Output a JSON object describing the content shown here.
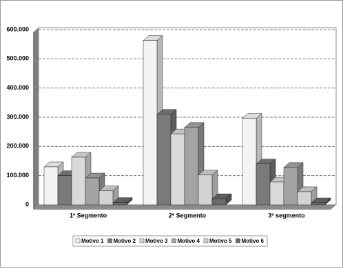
{
  "chart_data": {
    "type": "bar",
    "categories": [
      "1º Segmento",
      "2º Segmento",
      "3º segmento"
    ],
    "series": [
      {
        "name": "Motivo 1",
        "color": "#f4f4f4",
        "values": [
          130000,
          563000,
          296000
        ]
      },
      {
        "name": "Motivo 2",
        "color": "#7a7a7a",
        "values": [
          100000,
          310000,
          140000
        ]
      },
      {
        "name": "Motivo 3",
        "color": "#dadada",
        "values": [
          163000,
          243000,
          78000
        ]
      },
      {
        "name": "Motivo 4",
        "color": "#a3a3a3",
        "values": [
          92000,
          265000,
          128000
        ]
      },
      {
        "name": "Motivo 5",
        "color": "#d3d3d3",
        "values": [
          48000,
          102000,
          45000
        ]
      },
      {
        "name": "Motivo 6",
        "color": "#6a6a6a",
        "values": [
          8000,
          21000,
          7000
        ]
      }
    ],
    "ylim": [
      0,
      600000
    ],
    "yticks": [
      0,
      {
        "value": 100000,
        "label": "100.000"
      },
      {
        "value": 200000,
        "label": "200.000"
      },
      {
        "value": 300000,
        "label": "300.000"
      },
      {
        "value": 400000,
        "label": "400.000"
      },
      {
        "value": 500000,
        "label": "500.000"
      },
      {
        "value": 600000,
        "label": "600.000"
      }
    ],
    "grid": true
  }
}
